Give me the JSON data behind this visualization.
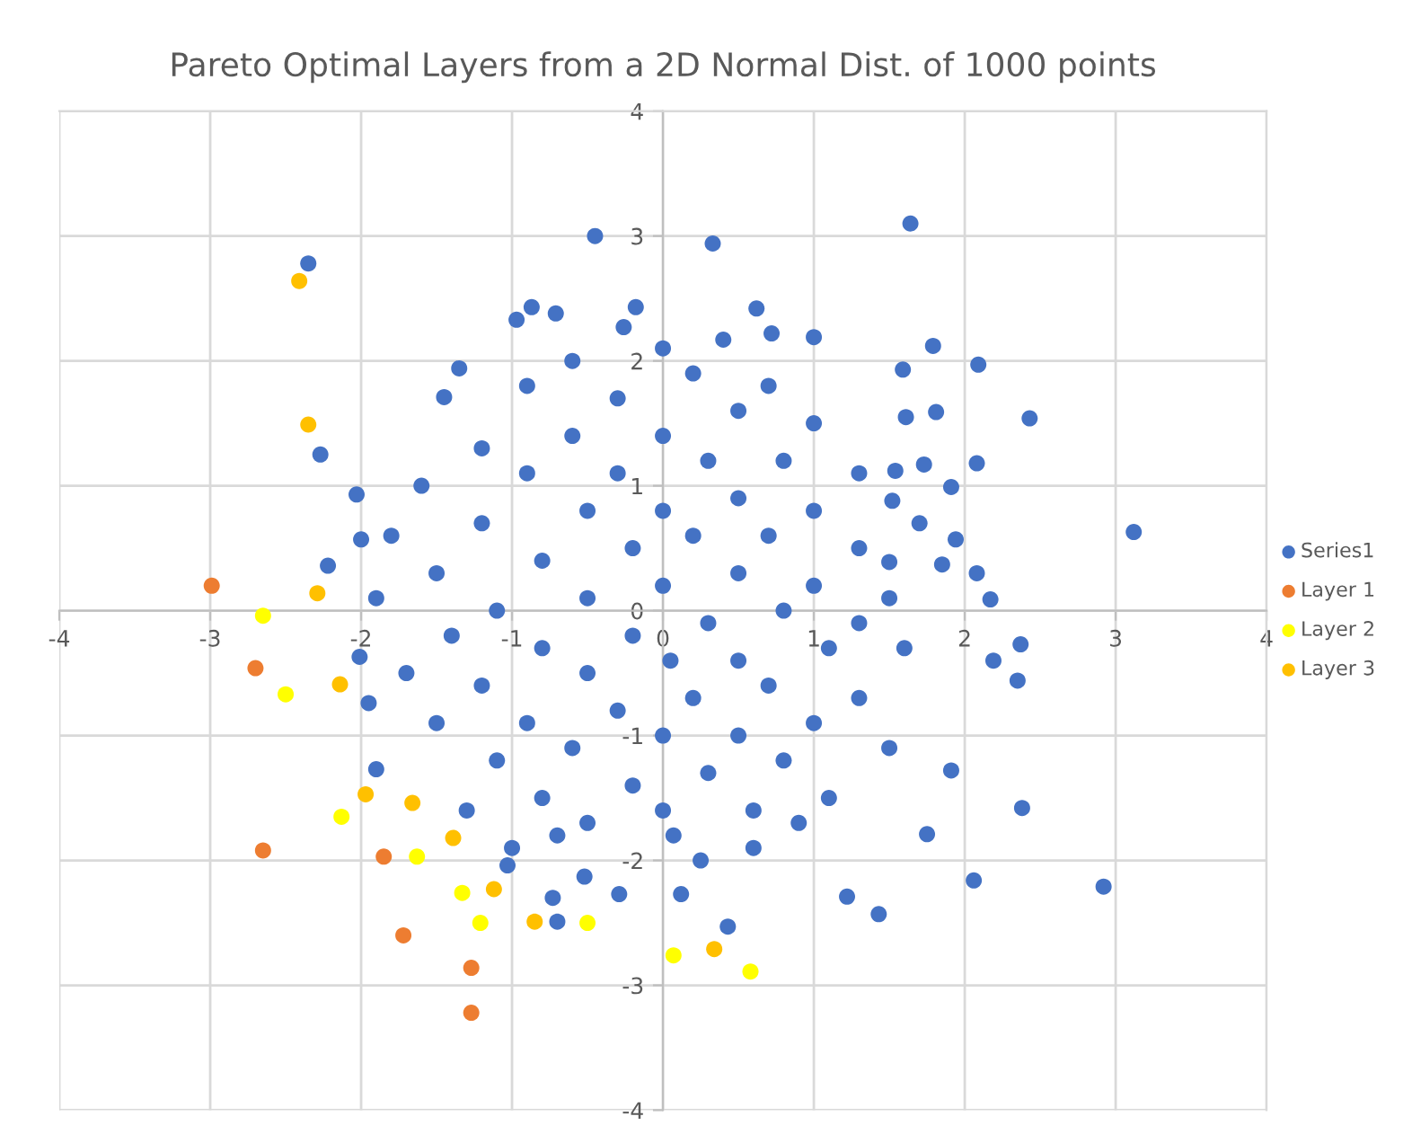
{
  "chart_data": {
    "type": "scatter",
    "title": "Pareto Optimal Layers from a 2D Normal Dist. of 1000 points",
    "xlim": [
      -4,
      4
    ],
    "ylim": [
      -4,
      4
    ],
    "xticks": [
      -4,
      -3,
      -2,
      -1,
      0,
      1,
      2,
      3,
      4
    ],
    "yticks": [
      -4,
      -3,
      -2,
      -1,
      0,
      1,
      2,
      3,
      4
    ],
    "grid": true,
    "legend": "right",
    "marker": "circle",
    "series": [
      {
        "name": "Series1",
        "color": "#4472c4",
        "x": [
          -2.35,
          -2.27,
          -0.45,
          0.33,
          1.64,
          2.43,
          3.12,
          2.09,
          1.79,
          2.17,
          2.08,
          2.08,
          1.91,
          2.37,
          2.38,
          2.92,
          2.06,
          2.35,
          2.19,
          1.43,
          1.22,
          1.75,
          0.43,
          0.12,
          1.91,
          -1.03,
          -0.73,
          -0.7,
          -0.52,
          -0.29,
          0.07,
          -1.9,
          -2.01,
          -1.95,
          -2.03,
          -2.0,
          -1.35,
          -1.45,
          -0.97,
          -0.87,
          -0.71,
          -0.18,
          -0.26,
          -2.22,
          0.62,
          1.0,
          0.72,
          0.4,
          1.59,
          1.81,
          1.61,
          1.73,
          1.94,
          1.85,
          1.5,
          1.52,
          1.54,
          -1.8,
          -1.6,
          -1.5,
          -1.4,
          -1.7,
          -1.5,
          -1.2,
          -1.2,
          -1.1,
          -1.2,
          -1.1,
          -1.3,
          -0.9,
          -0.9,
          -0.8,
          -0.8,
          -0.9,
          -0.8,
          -0.6,
          -0.6,
          -0.5,
          -0.5,
          -0.5,
          -0.6,
          -0.5,
          -0.3,
          -0.3,
          -0.2,
          -0.2,
          -0.3,
          -0.2,
          0.0,
          0.0,
          0.0,
          0.0,
          0.05,
          0.0,
          0.0,
          0.2,
          0.3,
          0.2,
          0.3,
          0.2,
          0.3,
          0.5,
          0.5,
          0.5,
          0.5,
          0.5,
          0.6,
          0.7,
          0.8,
          0.7,
          0.8,
          0.7,
          0.8,
          1.0,
          1.0,
          1.0,
          1.1,
          1.0,
          1.1,
          1.3,
          1.3,
          1.3,
          1.3,
          1.5,
          1.6,
          1.5,
          1.7,
          -1.9,
          -1.0,
          -0.7,
          0.25,
          0.6,
          0.9
        ],
        "values": [
          2.78,
          1.25,
          3.0,
          2.94,
          3.1,
          1.54,
          0.63,
          1.97,
          2.12,
          0.09,
          1.18,
          0.3,
          0.99,
          -0.27,
          -1.58,
          -2.21,
          -2.16,
          -0.56,
          -0.4,
          -2.43,
          -2.29,
          -1.79,
          -2.53,
          -2.27,
          -1.28,
          -2.04,
          -2.3,
          -2.49,
          -2.13,
          -2.27,
          -1.8,
          -1.27,
          -0.37,
          -0.74,
          0.93,
          0.57,
          1.94,
          1.71,
          2.33,
          2.43,
          2.38,
          2.43,
          2.27,
          0.36,
          2.42,
          2.19,
          2.22,
          2.17,
          1.93,
          1.59,
          1.55,
          1.17,
          0.57,
          0.37,
          0.39,
          0.88,
          1.12,
          0.6,
          1.0,
          0.3,
          -0.2,
          -0.5,
          -0.9,
          1.3,
          0.7,
          0.0,
          -0.6,
          -1.2,
          -1.6,
          1.8,
          1.1,
          0.4,
          -0.3,
          -0.9,
          -1.5,
          2.0,
          1.4,
          0.8,
          0.1,
          -0.5,
          -1.1,
          -1.7,
          1.7,
          1.1,
          0.5,
          -0.2,
          -0.8,
          -1.4,
          2.1,
          1.4,
          0.8,
          0.2,
          -0.4,
          -1.0,
          -1.6,
          1.9,
          1.2,
          0.6,
          -0.1,
          -0.7,
          -1.3,
          1.6,
          0.9,
          0.3,
          -0.4,
          -1.0,
          -1.6,
          1.8,
          1.2,
          0.6,
          0.0,
          -0.6,
          -1.2,
          1.5,
          0.8,
          0.2,
          -0.3,
          -0.9,
          -1.5,
          1.1,
          0.5,
          -0.1,
          -0.7,
          0.1,
          -0.3,
          -1.1,
          0.7,
          0.1,
          -1.9,
          -1.8,
          -2.0,
          -1.9,
          -1.7
        ]
      },
      {
        "name": "Layer 1",
        "color": "#ed7d31",
        "x": [
          -2.99,
          -2.7,
          -2.65,
          -1.85,
          -1.72,
          -1.27,
          -1.27
        ],
        "values": [
          0.2,
          -0.46,
          -1.92,
          -1.97,
          -2.6,
          -2.86,
          -3.22
        ]
      },
      {
        "name": "Layer 2",
        "color": "#ffff00",
        "x": [
          -2.65,
          -2.5,
          -2.13,
          -1.63,
          -1.33,
          -1.21,
          -0.5,
          0.07,
          0.58
        ],
        "values": [
          -0.04,
          -0.67,
          -1.65,
          -1.97,
          -2.26,
          -2.5,
          -2.5,
          -2.76,
          -2.89
        ]
      },
      {
        "name": "Layer 3",
        "color": "#ffc000",
        "x": [
          -2.41,
          -2.35,
          -2.29,
          -2.14,
          -1.97,
          -1.66,
          -1.39,
          -1.12,
          -0.85,
          0.34
        ],
        "values": [
          2.64,
          1.49,
          0.14,
          -0.59,
          -1.47,
          -1.54,
          -1.82,
          -2.23,
          -2.49,
          -2.71
        ]
      }
    ]
  }
}
